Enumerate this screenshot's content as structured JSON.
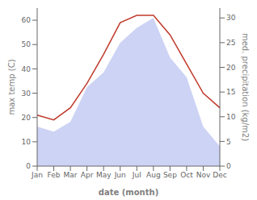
{
  "chart_data": {
    "type": "line",
    "xlabel": "date (month)",
    "ylabel": "max temp (C)",
    "y2label": "med. precipitation (kg/m2)",
    "categories": [
      "Jan",
      "Feb",
      "Mar",
      "Apr",
      "May",
      "Jun",
      "Jul",
      "Aug",
      "Sep",
      "Oct",
      "Nov",
      "Dec"
    ],
    "series": [
      {
        "type": "area",
        "axis": "y2",
        "color": "#b0bcee",
        "values": [
          8,
          7,
          9,
          16,
          19,
          25,
          28,
          30,
          22,
          18,
          8,
          4
        ]
      },
      {
        "type": "line",
        "color": "#c0392b",
        "values": [
          21,
          19,
          24,
          34,
          46,
          59,
          62,
          62,
          54,
          42,
          30,
          24
        ]
      }
    ],
    "ylim": [
      0,
      65
    ],
    "yticks": [
      0,
      10,
      20,
      30,
      40,
      50,
      60
    ],
    "y2lim": [
      0,
      32
    ],
    "y2ticks": [
      0,
      5,
      10,
      15,
      20,
      25,
      30
    ],
    "grid": false
  }
}
